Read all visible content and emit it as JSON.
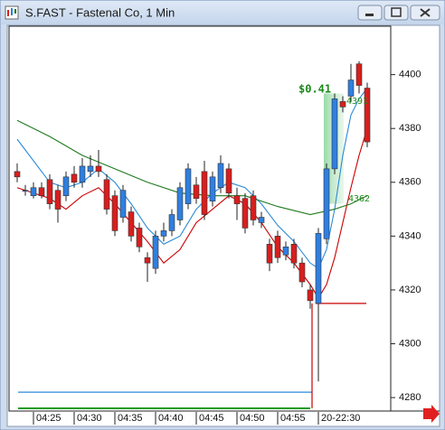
{
  "window_title": "S.FAST - Fastenal Co, 1 Min",
  "chart_data": {
    "type": "candlestick",
    "categories": [
      null,
      null,
      "04:25",
      null,
      null,
      null,
      null,
      "04:30",
      null,
      null,
      null,
      null,
      "04:35",
      null,
      null,
      null,
      null,
      "04:40",
      null,
      null,
      null,
      null,
      "04:45",
      null,
      null,
      null,
      null,
      "04:50",
      null,
      null,
      null,
      null,
      "04:55",
      null,
      null,
      null,
      null,
      "20-22:30",
      null,
      null,
      null,
      null,
      null,
      null
    ],
    "open": [
      4364,
      4357,
      4355,
      4358,
      4361,
      4357,
      4355,
      4363,
      4360,
      4364,
      4366,
      4361,
      4355,
      4347,
      4349,
      4343,
      4332,
      4328,
      4340,
      4342,
      4346,
      4352,
      4359,
      4364,
      4353,
      4358,
      4365,
      4355,
      4354,
      4355,
      4345,
      4337,
      4340,
      4333,
      4337,
      4330,
      4320,
      4315,
      4339,
      4365,
      4390,
      4392,
      4404,
      4395
    ],
    "high": [
      4367,
      4359,
      4360,
      4360,
      4363,
      4359,
      4364,
      4366,
      4369,
      4370,
      4372,
      4363,
      4357,
      4359,
      4351,
      4345,
      4334,
      4342,
      4345,
      4350,
      4360,
      4367,
      4362,
      4368,
      4364,
      4370,
      4367,
      4358,
      4356,
      4357,
      4349,
      4339,
      4342,
      4338,
      4339,
      4332,
      4322,
      4343,
      4367,
      4393,
      4392,
      4404,
      4405,
      4397
    ],
    "low": [
      4360,
      4355,
      4354,
      4354,
      4350,
      4345,
      4353,
      4358,
      4358,
      4362,
      4362,
      4348,
      4340,
      4345,
      4338,
      4334,
      4323,
      4326,
      4338,
      4340,
      4344,
      4350,
      4352,
      4346,
      4351,
      4356,
      4354,
      4346,
      4341,
      4344,
      4343,
      4327,
      4330,
      4331,
      4328,
      4321,
      4313,
      4286,
      4337,
      4363,
      4386,
      4390,
      4393,
      4373
    ],
    "close": [
      4362,
      4357,
      4358,
      4355,
      4352,
      4350,
      4362,
      4360,
      4366,
      4366,
      4364,
      4350,
      4342,
      4357,
      4340,
      4336,
      4330,
      4340,
      4342,
      4348,
      4358,
      4365,
      4354,
      4348,
      4362,
      4367,
      4356,
      4352,
      4343,
      4346,
      4347,
      4330,
      4332,
      4336,
      4330,
      4323,
      4316,
      4341,
      4365,
      4391,
      4388,
      4398,
      4396,
      4375
    ],
    "up_color": "#2f7fe0",
    "down_color": "#d81e1e",
    "lines": [
      {
        "color": "#2b8ad8",
        "x": [
          0,
          4,
          6,
          8,
          10,
          12,
          14,
          16,
          18,
          20,
          22,
          24,
          26,
          28,
          30,
          32,
          34,
          36,
          37,
          38,
          39,
          40,
          41,
          42,
          43
        ],
        "values": [
          4376,
          4360,
          4358,
          4360,
          4365,
          4360,
          4352,
          4343,
          4337,
          4340,
          4350,
          4356,
          4360,
          4358,
          4352,
          4344,
          4338,
          4330,
          4328,
          4335,
          4350,
          4370,
          4385,
          4391,
          4395
        ]
      },
      {
        "color": "#cc0000",
        "x": [
          0,
          4,
          6,
          8,
          10,
          12,
          14,
          16,
          18,
          20,
          22,
          24,
          26,
          28,
          30,
          32,
          34,
          36,
          37,
          38,
          39,
          40,
          41,
          42,
          43
        ],
        "values": [
          4358,
          4354,
          4350,
          4355,
          4358,
          4352,
          4345,
          4338,
          4330,
          4335,
          4345,
          4350,
          4355,
          4352,
          4345,
          4336,
          4330,
          4322,
          4317,
          4322,
          4332,
          4345,
          4358,
          4370,
          4380
        ]
      },
      {
        "color": "#1f7a1f",
        "x": [
          0,
          4,
          8,
          12,
          16,
          20,
          24,
          28,
          32,
          36,
          39,
          41,
          43
        ],
        "values": [
          4383,
          4377,
          4370,
          4365,
          4360,
          4356,
          4355,
          4355,
          4351,
          4348,
          4350,
          4352,
          4355
        ]
      }
    ],
    "levels": [
      {
        "value": 4315,
        "color": "#cc0000"
      },
      {
        "value": 4282,
        "color": "#2b8ad8"
      }
    ],
    "highlight": [
      4352,
      4393
    ],
    "annotations": [
      "$0.41",
      "4391",
      "4362"
    ],
    "ylim": [
      4275,
      4418
    ],
    "yticks": [
      4280,
      4300,
      4320,
      4340,
      4360,
      4380,
      4400
    ]
  }
}
